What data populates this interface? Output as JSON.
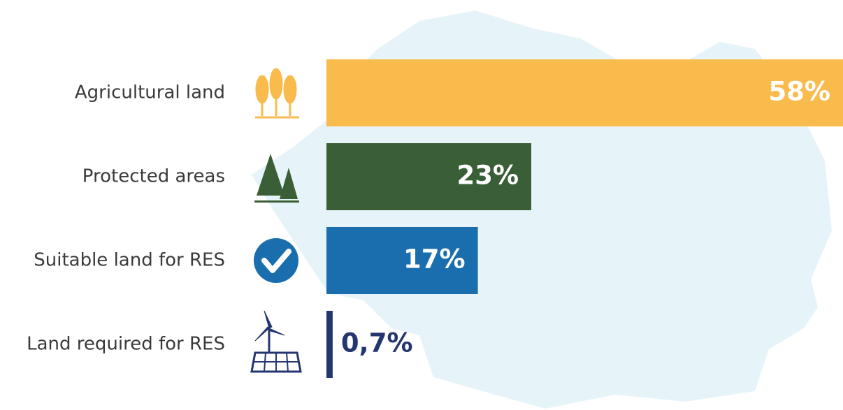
{
  "chart_data": {
    "type": "bar",
    "orientation": "horizontal",
    "categories": [
      "Agricultural land",
      "Protected areas",
      "Suitable land for RES",
      "Land required for RES"
    ],
    "values": [
      58,
      23,
      17,
      0.7
    ],
    "value_labels": [
      "58%",
      "23%",
      "17%",
      "0,7%"
    ],
    "colors": [
      "#f9bb4c",
      "#3a5e36",
      "#1b6ead",
      "#24366f"
    ]
  }
}
